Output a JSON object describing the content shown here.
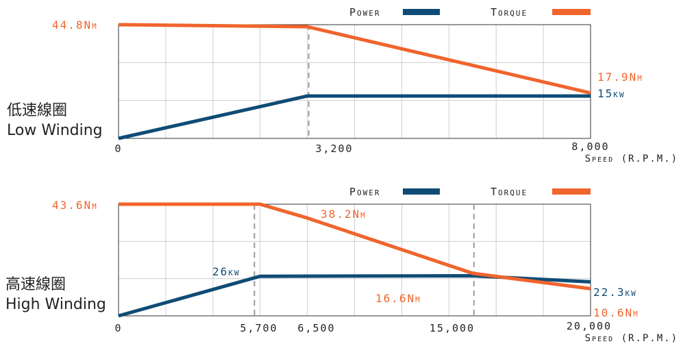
{
  "colors": {
    "power": "#0f4c75",
    "torque": "#f0642d",
    "grid": "#cfcfcf",
    "axis": "#333333",
    "dashed": "#9a9a9a",
    "tick_text": "#222222"
  },
  "chart_data": [
    {
      "type": "line",
      "winding_zh": "低速線圈",
      "winding_en": "Low Winding",
      "legend": {
        "power": "Power",
        "torque": "Torque"
      },
      "xlabel": "Speed (R.P.M.)",
      "xlim": [
        0,
        8000
      ],
      "x_ticks": [
        "0",
        "3,200",
        "8,000"
      ],
      "torque_ylim": [
        0,
        44.8
      ],
      "power_ylim": [
        0,
        40.2
      ],
      "vlines": [
        3200
      ],
      "series": [
        {
          "name": "Power",
          "x": [
            0,
            3200,
            8000
          ],
          "y": [
            0,
            15,
            15
          ],
          "color_key": "power"
        },
        {
          "name": "Torque",
          "x": [
            0,
            3200,
            8000
          ],
          "y": [
            44.8,
            44.0,
            17.9
          ],
          "color_key": "torque"
        }
      ],
      "labels": {
        "torque_start": "44.8Nm",
        "torque_end": "17.9Nm",
        "power_end": "15kw"
      }
    },
    {
      "type": "line",
      "winding_zh": "高速線圈",
      "winding_en": "High Winding",
      "legend": {
        "power": "Power",
        "torque": "Torque"
      },
      "xlabel": "Speed (R.P.M.)",
      "xlim": [
        0,
        20000
      ],
      "x_ticks": [
        "0",
        "5,700",
        "6,500",
        "15,000",
        "20,000"
      ],
      "torque_ylim": [
        0,
        43.6
      ],
      "power_ylim": [
        0,
        73.3
      ],
      "vlines": [
        5700,
        15000
      ],
      "series": [
        {
          "name": "Power",
          "x": [
            0,
            6000,
            15000,
            20000
          ],
          "y": [
            0,
            26,
            26.3,
            22.3
          ],
          "color_key": "power"
        },
        {
          "name": "Torque",
          "x": [
            0,
            6000,
            8000,
            15000,
            20000
          ],
          "y": [
            43.6,
            43.6,
            38.2,
            16.6,
            10.6
          ],
          "color_key": "torque"
        }
      ],
      "labels": {
        "torque_start": "43.6Nm",
        "torque_mid": "38.2Nm",
        "torque_low": "16.6Nm",
        "torque_end": "10.6Nm",
        "power_peak": "26kw",
        "power_end": "22.3kw"
      }
    }
  ]
}
